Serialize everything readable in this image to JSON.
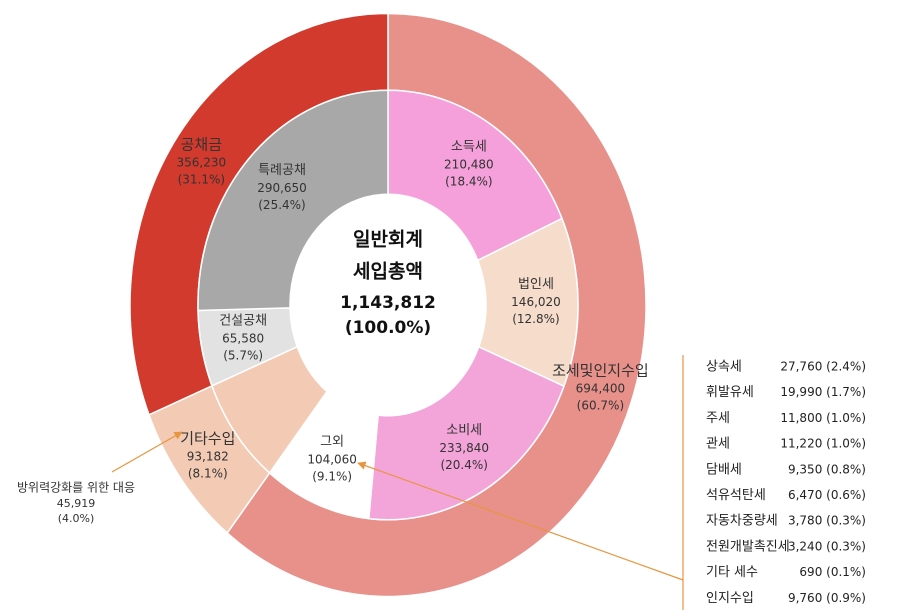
{
  "chart_data": {
    "type": "nested-donut",
    "center_title": [
      "일반회계",
      "세입총액"
    ],
    "total": 1143812,
    "total_label": "1,143,812",
    "total_percent_label": "(100.0%)",
    "outer": {
      "categories": [
        "조세및인지수입",
        "기타수입",
        "공채금"
      ],
      "values": [
        694400,
        93182,
        356230
      ],
      "value_labels": [
        "694,400",
        "93,182",
        "356,230"
      ],
      "percent_labels": [
        "(60.7%)",
        "(8.1%)",
        "(31.1%)"
      ],
      "colors": [
        "#e8918a",
        "#f3cab3",
        "#d23a2d"
      ]
    },
    "inner": {
      "categories": [
        "소득세",
        "법인세",
        "소비세",
        "그외",
        null,
        "건설공채",
        "특례공채"
      ],
      "values": [
        210480,
        146020,
        233840,
        104060,
        93182,
        65580,
        290650
      ],
      "value_labels": [
        "210,480",
        "146,020",
        "233,840",
        "104,060",
        null,
        "65,580",
        "290,650"
      ],
      "percent_labels": [
        "(18.4%)",
        "(12.8%)",
        "(20.4%)",
        "(9.1%)",
        null,
        "(5.7%)",
        "(25.4%)"
      ],
      "colors": [
        "#f5a0da",
        "#f6dccb",
        "#f3a4d9",
        "#ffffff",
        "#f3cab3",
        "#e2e2e2",
        "#a8a8a8"
      ]
    },
    "annotation": {
      "text": "방위력강화를 위한 대응",
      "value_label": "45,919",
      "percent_label": "(4.0%)"
    },
    "breakdown": [
      {
        "name": "상속세",
        "value_text": "27,760 (2.4%)"
      },
      {
        "name": "휘발유세",
        "value_text": "19,990 (1.7%)"
      },
      {
        "name": "주세",
        "value_text": "11,800 (1.0%)"
      },
      {
        "name": "관세",
        "value_text": "11,220 (1.0%)"
      },
      {
        "name": "담배세",
        "value_text": "9,350 (0.8%)"
      },
      {
        "name": "석유석탄세",
        "value_text": "6,470 (0.6%)"
      },
      {
        "name": "자동차중량세",
        "value_text": "3,780 (0.3%)"
      },
      {
        "name": "전원개발촉진세",
        "value_text": "3,240 (0.3%)"
      },
      {
        "name": "기타 세수",
        "value_text": "690 (0.1%)"
      },
      {
        "name": "인지수입",
        "value_text": "9,760 (0.9%)"
      }
    ]
  }
}
